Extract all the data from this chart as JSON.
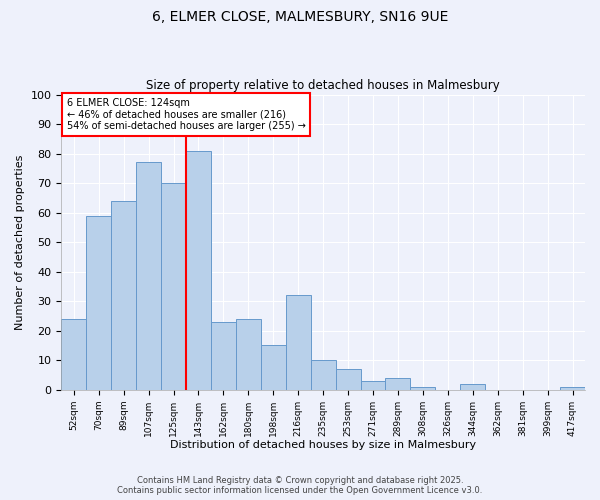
{
  "title1": "6, ELMER CLOSE, MALMESBURY, SN16 9UE",
  "title2": "Size of property relative to detached houses in Malmesbury",
  "xlabel": "Distribution of detached houses by size in Malmesbury",
  "ylabel": "Number of detached properties",
  "categories": [
    "52sqm",
    "70sqm",
    "89sqm",
    "107sqm",
    "125sqm",
    "143sqm",
    "162sqm",
    "180sqm",
    "198sqm",
    "216sqm",
    "235sqm",
    "253sqm",
    "271sqm",
    "289sqm",
    "308sqm",
    "326sqm",
    "344sqm",
    "362sqm",
    "381sqm",
    "399sqm",
    "417sqm"
  ],
  "values": [
    24,
    59,
    64,
    77,
    70,
    81,
    23,
    24,
    15,
    32,
    10,
    7,
    3,
    4,
    1,
    0,
    2,
    0,
    0,
    0,
    1
  ],
  "bar_color": "#b8d0ea",
  "bar_edge_color": "#6699cc",
  "property_line_x": 4.5,
  "annotation_title": "6 ELMER CLOSE: 124sqm",
  "annotation_line1": "← 46% of detached houses are smaller (216)",
  "annotation_line2": "54% of semi-detached houses are larger (255) →",
  "annotation_box_color": "white",
  "annotation_border_color": "red",
  "vline_color": "red",
  "ylim": [
    0,
    100
  ],
  "background_color": "#eef1fb",
  "grid_color": "white",
  "footer1": "Contains HM Land Registry data © Crown copyright and database right 2025.",
  "footer2": "Contains public sector information licensed under the Open Government Licence v3.0."
}
